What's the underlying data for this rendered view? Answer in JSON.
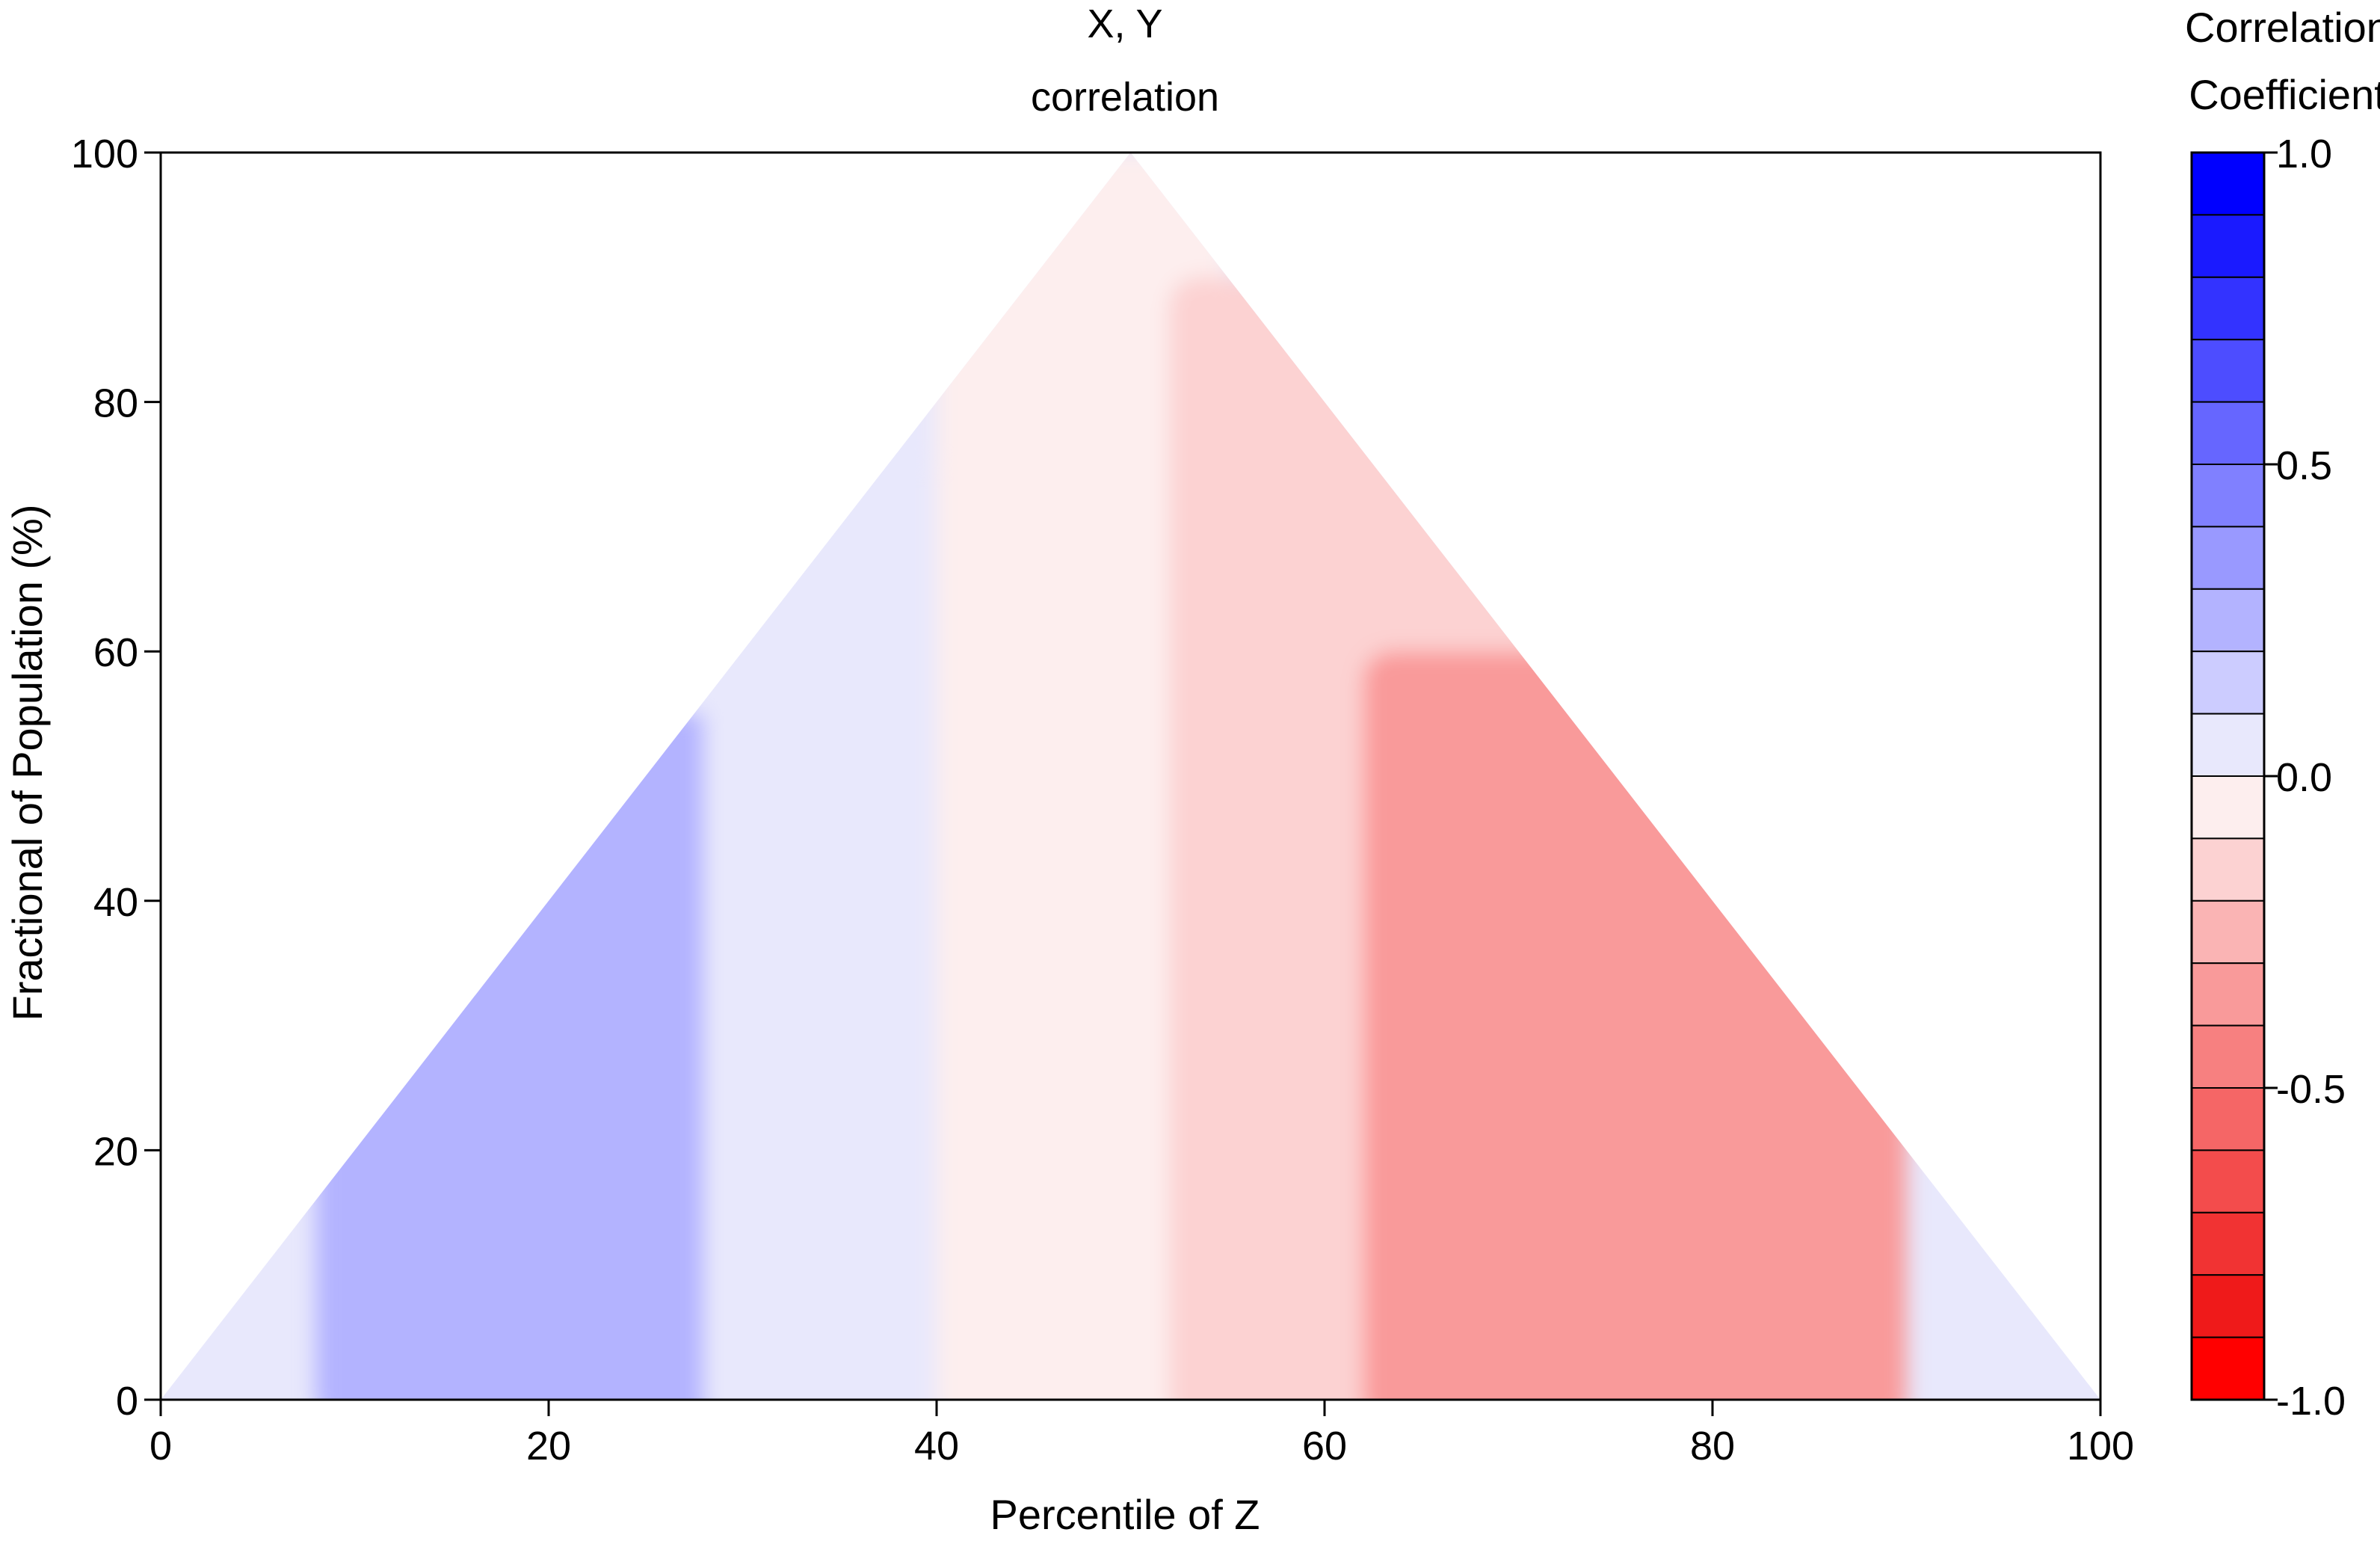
{
  "chart_data": {
    "type": "heatmap",
    "title": [
      "X, Y",
      "correlation"
    ],
    "xlabel": "Percentile of Z",
    "ylabel": "Fractional of Population (%)",
    "xlim": [
      0,
      100
    ],
    "ylim": [
      0,
      100
    ],
    "xticks": [
      "0",
      "20",
      "40",
      "60",
      "80",
      "100"
    ],
    "yticks": [
      "0",
      "20",
      "40",
      "60",
      "80",
      "100"
    ],
    "shape": "triangle",
    "triangle_vertices": [
      [
        0,
        0
      ],
      [
        50,
        100
      ],
      [
        100,
        0
      ]
    ],
    "colorbar": {
      "title": [
        "Correlation",
        "Coefficient"
      ],
      "min": -1.0,
      "max": 1.0,
      "levels": 20,
      "tick_labels": [
        "1.0",
        "0.5",
        "0.0",
        "-0.5",
        "-1.0"
      ],
      "tick_values": [
        1.0,
        0.5,
        0.0,
        -0.5,
        -1.0
      ],
      "colors": [
        "#0000ff",
        "#1a1aff",
        "#3333ff",
        "#4d4dff",
        "#6666ff",
        "#8080ff",
        "#9999ff",
        "#b3b3ff",
        "#ccccff",
        "#e8e8fc",
        "#fdeeee",
        "#fcd2d2",
        "#fab4b4",
        "#f99a9a",
        "#f78080",
        "#f56666",
        "#f34c4c",
        "#f13333",
        "#ef1a1a",
        "#ff0000"
      ]
    },
    "regions": [
      {
        "name": "strong-positive-left",
        "x_range": [
          10,
          32
        ],
        "y_range": [
          0,
          30
        ],
        "value": 0.45
      },
      {
        "name": "positive-left",
        "x_range": [
          8,
          38
        ],
        "y_range": [
          0,
          55
        ],
        "value": 0.3
      },
      {
        "name": "weak-positive-center-left",
        "x_range": [
          28,
          44
        ],
        "y_range": [
          0,
          75
        ],
        "value": 0.1
      },
      {
        "name": "near-zero-center",
        "x_range": [
          40,
          55
        ],
        "y_range": [
          0,
          100
        ],
        "value": -0.05
      },
      {
        "name": "weak-negative-center-right",
        "x_range": [
          52,
          80
        ],
        "y_range": [
          0,
          90
        ],
        "value": -0.15
      },
      {
        "name": "negative-right",
        "x_range": [
          62,
          90
        ],
        "y_range": [
          0,
          60
        ],
        "value": -0.3
      },
      {
        "name": "stronger-negative-bottom-right",
        "x_range": [
          76,
          90
        ],
        "y_range": [
          0,
          20
        ],
        "value": -0.35
      }
    ]
  }
}
